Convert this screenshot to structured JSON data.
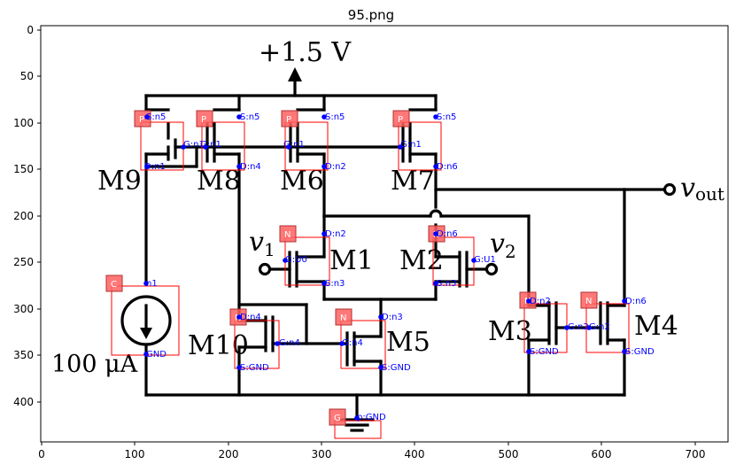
{
  "title": "95.png",
  "axes": {
    "x_ticks": [
      "0",
      "100",
      "200",
      "300",
      "400",
      "500",
      "600",
      "700"
    ],
    "y_ticks": [
      "0",
      "50",
      "100",
      "150",
      "200",
      "250",
      "300",
      "350",
      "400"
    ]
  },
  "circuit_labels": {
    "vdd": "+1.5 V",
    "vout": "v",
    "vout_sub": "out",
    "v1": "v",
    "v1_sub": "1",
    "v2": "v",
    "v2_sub": "2",
    "current": "100 μA",
    "M1": "M1",
    "M2": "M2",
    "M3": "M3",
    "M4": "M4",
    "M5": "M5",
    "M6": "M6",
    "M7": "M7",
    "M8": "M8",
    "M9": "M9",
    "M10": "M10"
  },
  "detections": [
    {
      "tag": "P",
      "pins": [
        "S:n5",
        "G:n1",
        "D:n1"
      ]
    },
    {
      "tag": "P",
      "pins": [
        "S:n5",
        "G:n1",
        "D:n4"
      ]
    },
    {
      "tag": "P",
      "pins": [
        "S:n5",
        "G:n1",
        "D:n2"
      ]
    },
    {
      "tag": "P",
      "pins": [
        "S:n5",
        "G:n1",
        "D:n6"
      ]
    },
    {
      "tag": "N",
      "pins": [
        "D:n2",
        "G:U0",
        "S:n3"
      ]
    },
    {
      "tag": "N",
      "pins": [
        "D:n6",
        "G:U1",
        "S:n3"
      ]
    },
    {
      "tag": "C",
      "pins": [
        "n1",
        "GND"
      ]
    },
    {
      "tag": "N",
      "pins": [
        "D:n4",
        "G:n4",
        "S:GND"
      ]
    },
    {
      "tag": "N",
      "pins": [
        "D:n3",
        "G:n4",
        "S:GND"
      ]
    },
    {
      "tag": "N",
      "pins": [
        "D:n2",
        "G:n2",
        "S:GND"
      ]
    },
    {
      "tag": "N",
      "pins": [
        "D:n6",
        "G:n2",
        "S:GND"
      ]
    },
    {
      "tag": "G",
      "pins": [
        "p:GND"
      ]
    }
  ]
}
